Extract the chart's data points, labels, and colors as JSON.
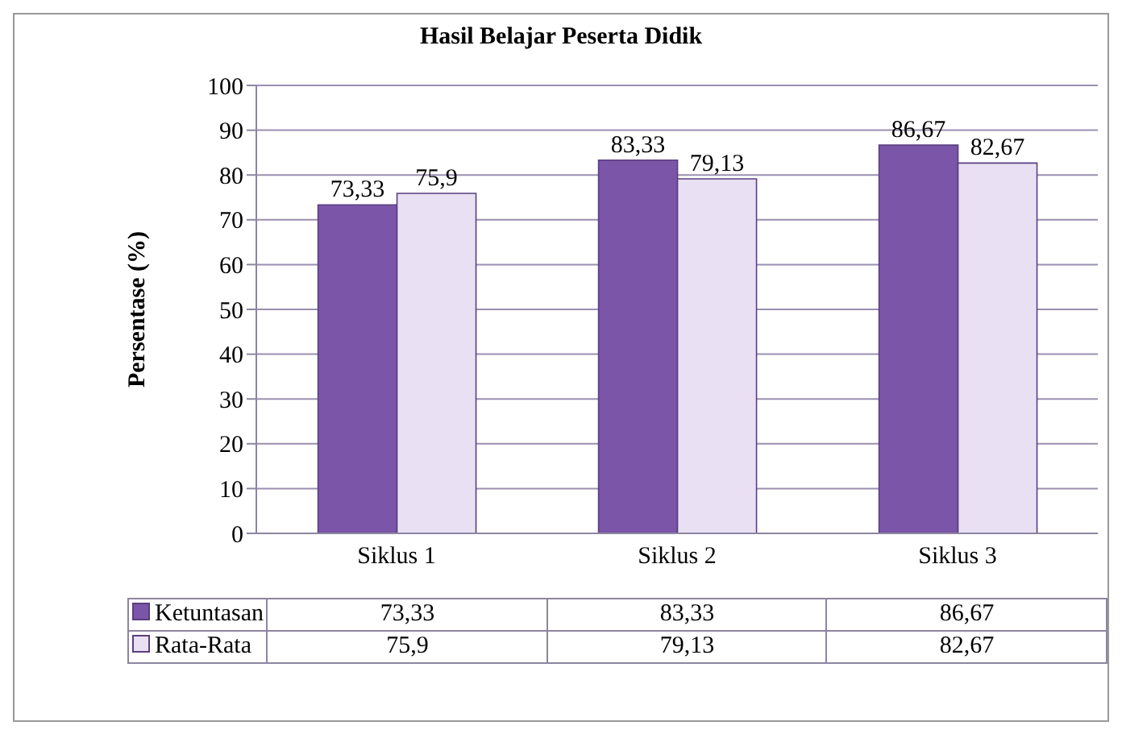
{
  "chart_data": {
    "type": "bar",
    "title": "Hasil Belajar Peserta Didik",
    "ylabel": "Persentase (%)",
    "categories": [
      "Siklus 1",
      "Siklus 2",
      "Siklus 3"
    ],
    "series": [
      {
        "name": "Ketuntasan",
        "color": "#7a55a8",
        "values": [
          73.33,
          83.33,
          86.67
        ],
        "value_labels": [
          "73,33",
          "83,33",
          "86,67"
        ]
      },
      {
        "name": "Rata-Rata",
        "color": "#e9e0f3",
        "values": [
          75.9,
          79.13,
          82.67
        ],
        "value_labels": [
          "75,9",
          "79,13",
          "82,67"
        ]
      }
    ],
    "ylim": [
      0,
      100
    ],
    "yticks": [
      0,
      10,
      20,
      30,
      40,
      50,
      60,
      70,
      80,
      90,
      100
    ],
    "grid": "y",
    "legend": "bottom"
  }
}
